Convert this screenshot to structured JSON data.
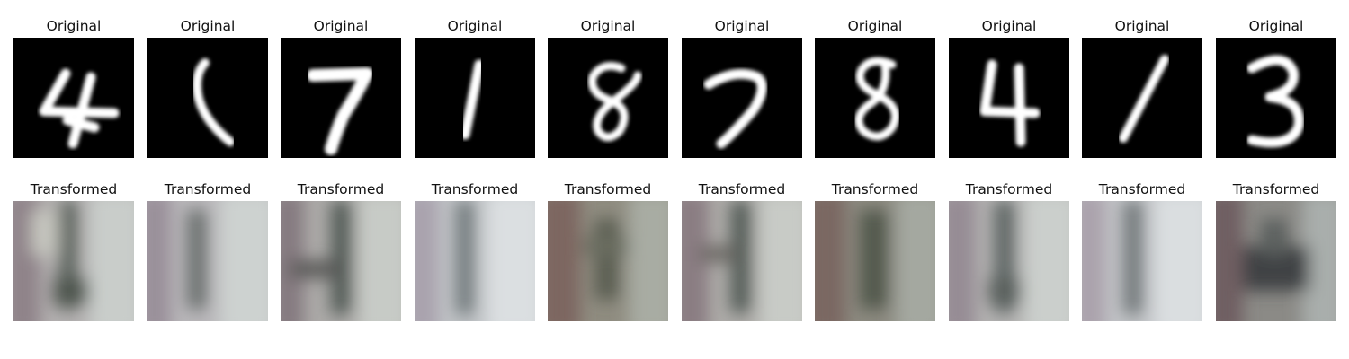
{
  "figure": {
    "rows": [
      {
        "panels": [
          {
            "title": "Original",
            "digit": "4"
          },
          {
            "title": "Original",
            "digit": "1"
          },
          {
            "title": "Original",
            "digit": "7"
          },
          {
            "title": "Original",
            "digit": "1"
          },
          {
            "title": "Original",
            "digit": "8"
          },
          {
            "title": "Original",
            "digit": "7"
          },
          {
            "title": "Original",
            "digit": "8"
          },
          {
            "title": "Original",
            "digit": "4"
          },
          {
            "title": "Original",
            "digit": "1"
          },
          {
            "title": "Original",
            "digit": "3"
          }
        ]
      },
      {
        "panels": [
          {
            "title": "Transformed"
          },
          {
            "title": "Transformed"
          },
          {
            "title": "Transformed"
          },
          {
            "title": "Transformed"
          },
          {
            "title": "Transformed"
          },
          {
            "title": "Transformed"
          },
          {
            "title": "Transformed"
          },
          {
            "title": "Transformed"
          },
          {
            "title": "Transformed"
          },
          {
            "title": "Transformed"
          }
        ]
      }
    ]
  }
}
